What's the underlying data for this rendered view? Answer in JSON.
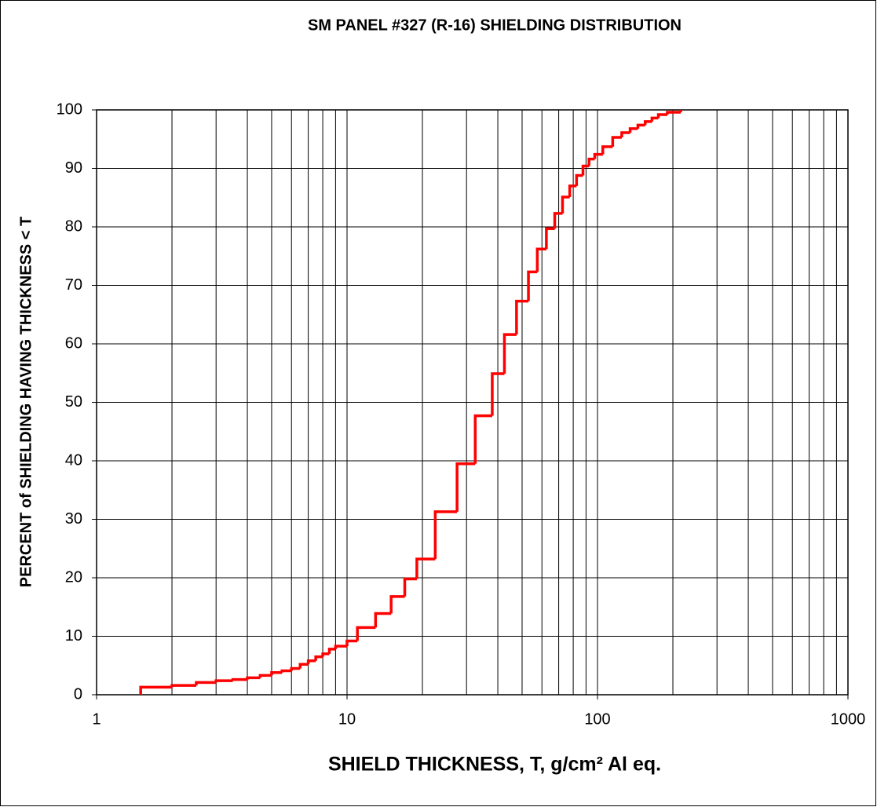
{
  "chart_data": {
    "type": "step",
    "title": "SM  PANEL #327 (R-16) SHIELDING DISTRIBUTION",
    "xlabel": "SHIELD THICKNESS, T,  g/cm² Al eq.",
    "ylabel": "PERCENT of SHIELDING HAVING THICKNESS  <  T",
    "xscale": "log",
    "xlim": [
      1,
      1000
    ],
    "xticks": [
      1,
      10,
      100,
      1000
    ],
    "ylim": [
      0,
      100
    ],
    "yticks": [
      0,
      10,
      20,
      30,
      40,
      50,
      60,
      70,
      80,
      90,
      100
    ],
    "grid": true,
    "minor_grid": true,
    "series": [
      {
        "color": "#ff0000",
        "x": [
          1.5,
          2.0,
          2.5,
          3.0,
          3.5,
          4.0,
          4.5,
          5.0,
          5.5,
          6.0,
          6.5,
          7.0,
          7.5,
          8.0,
          8.5,
          9.0,
          10,
          11,
          13,
          15,
          17,
          19,
          22.5,
          27.5,
          32.5,
          38,
          42.5,
          47.5,
          53,
          57.5,
          62.5,
          67.5,
          72.5,
          77.5,
          82.5,
          87.5,
          92.5,
          97.5,
          105,
          115,
          125,
          135,
          145,
          155,
          165,
          175,
          190,
          215
        ],
        "values": [
          1.3,
          1.6,
          2.1,
          2.4,
          2.6,
          2.9,
          3.3,
          3.8,
          4.1,
          4.5,
          5.2,
          5.8,
          6.5,
          7.0,
          7.8,
          8.3,
          9.2,
          11.5,
          13.9,
          16.8,
          19.8,
          23.2,
          31.3,
          39.5,
          47.7,
          54.9,
          61.6,
          67.3,
          72.3,
          76.2,
          79.7,
          82.3,
          85.1,
          87.0,
          88.8,
          90.4,
          91.6,
          92.4,
          93.7,
          95.3,
          96.1,
          96.8,
          97.4,
          98.0,
          98.6,
          99.2,
          99.6,
          100
        ]
      }
    ]
  }
}
